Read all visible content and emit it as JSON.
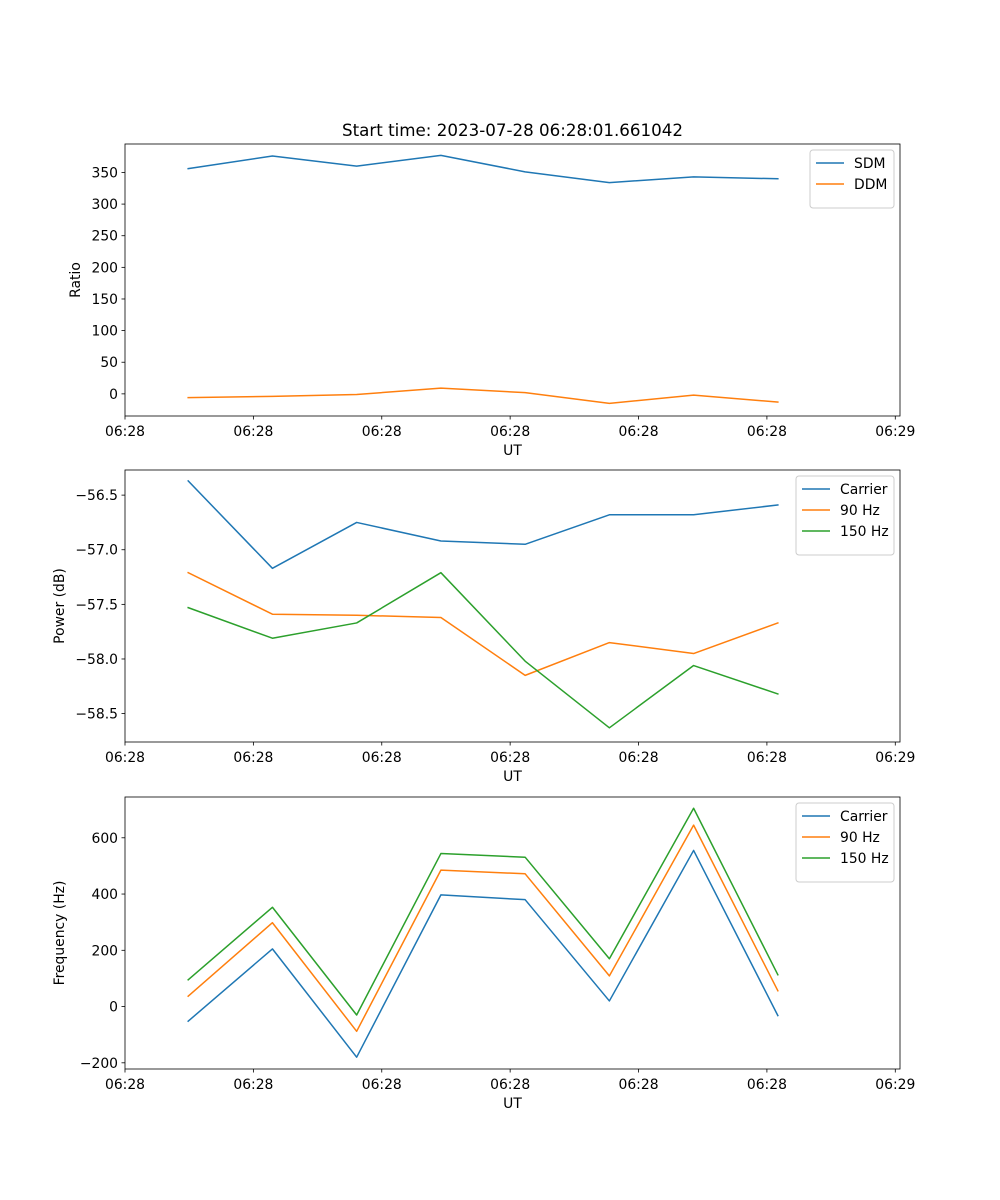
{
  "title": "Start time: 2023-07-28 06:28:01.661042",
  "chart_data": [
    {
      "type": "line",
      "ylabel": "Ratio",
      "xlabel": "UT",
      "x_index": [
        0,
        1,
        2,
        3,
        4,
        5,
        6,
        7
      ],
      "xlim": [
        -0.75,
        8.45
      ],
      "xticks": [
        -0.75,
        0.774,
        2.298,
        3.822,
        5.346,
        6.87,
        8.394
      ],
      "xtick_labels": [
        "06:28",
        "06:28",
        "06:28",
        "06:28",
        "06:28",
        "06:28",
        "06:29"
      ],
      "ylim": [
        -35,
        395
      ],
      "yticks": [
        0,
        50,
        100,
        150,
        200,
        250,
        300,
        350
      ],
      "ytick_labels": [
        "0",
        "50",
        "100",
        "150",
        "200",
        "250",
        "300",
        "350"
      ],
      "legend_position": "top-right",
      "series": [
        {
          "name": "SDM",
          "color": "#1f77b4",
          "values": [
            356,
            376,
            360,
            377,
            351,
            334,
            343,
            340
          ]
        },
        {
          "name": "DDM",
          "color": "#ff7f0e",
          "values": [
            -6,
            -4,
            -1,
            9,
            2,
            -15,
            -2,
            -13
          ]
        }
      ]
    },
    {
      "type": "line",
      "ylabel": "Power (dB)",
      "xlabel": "UT",
      "x_index": [
        0,
        1,
        2,
        3,
        4,
        5,
        6,
        7
      ],
      "xlim": [
        -0.75,
        8.45
      ],
      "xticks": [
        -0.75,
        0.774,
        2.298,
        3.822,
        5.346,
        6.87,
        8.394
      ],
      "xtick_labels": [
        "06:28",
        "06:28",
        "06:28",
        "06:28",
        "06:28",
        "06:28",
        "06:29"
      ],
      "ylim": [
        -58.76,
        -56.27
      ],
      "yticks": [
        -56.5,
        -57.0,
        -57.5,
        -58.0,
        -58.5
      ],
      "ytick_labels": [
        "−56.5",
        "−57.0",
        "−57.5",
        "−58.0",
        "−58.5"
      ],
      "legend_position": "top-right",
      "series": [
        {
          "name": "Carrier",
          "color": "#1f77b4",
          "values": [
            -56.37,
            -57.17,
            -56.75,
            -56.92,
            -56.95,
            -56.68,
            -56.68,
            -56.59
          ]
        },
        {
          "name": "90 Hz",
          "color": "#ff7f0e",
          "values": [
            -57.21,
            -57.59,
            -57.6,
            -57.62,
            -58.15,
            -57.85,
            -57.95,
            -57.67
          ]
        },
        {
          "name": "150 Hz",
          "color": "#2ca02c",
          "values": [
            -57.53,
            -57.81,
            -57.67,
            -57.21,
            -58.02,
            -58.63,
            -58.06,
            -58.32
          ]
        }
      ]
    },
    {
      "type": "line",
      "ylabel": "Frequency (Hz)",
      "xlabel": "UT",
      "x_index": [
        0,
        1,
        2,
        3,
        4,
        5,
        6,
        7
      ],
      "xlim": [
        -0.75,
        8.45
      ],
      "xticks": [
        -0.75,
        0.774,
        2.298,
        3.822,
        5.346,
        6.87,
        8.394
      ],
      "xtick_labels": [
        "06:28",
        "06:28",
        "06:28",
        "06:28",
        "06:28",
        "06:28",
        "06:29"
      ],
      "ylim": [
        -222,
        745
      ],
      "yticks": [
        -200,
        0,
        200,
        400,
        600
      ],
      "ytick_labels": [
        "−200",
        "0",
        "200",
        "400",
        "600"
      ],
      "legend_position": "top-right",
      "series": [
        {
          "name": "Carrier",
          "color": "#1f77b4",
          "values": [
            -52,
            205,
            -180,
            397,
            380,
            20,
            555,
            -32
          ]
        },
        {
          "name": "90 Hz",
          "color": "#ff7f0e",
          "values": [
            37,
            298,
            -88,
            485,
            472,
            109,
            645,
            56
          ]
        },
        {
          "name": "150 Hz",
          "color": "#2ca02c",
          "values": [
            95,
            353,
            -30,
            544,
            531,
            170,
            705,
            113
          ]
        }
      ]
    }
  ]
}
